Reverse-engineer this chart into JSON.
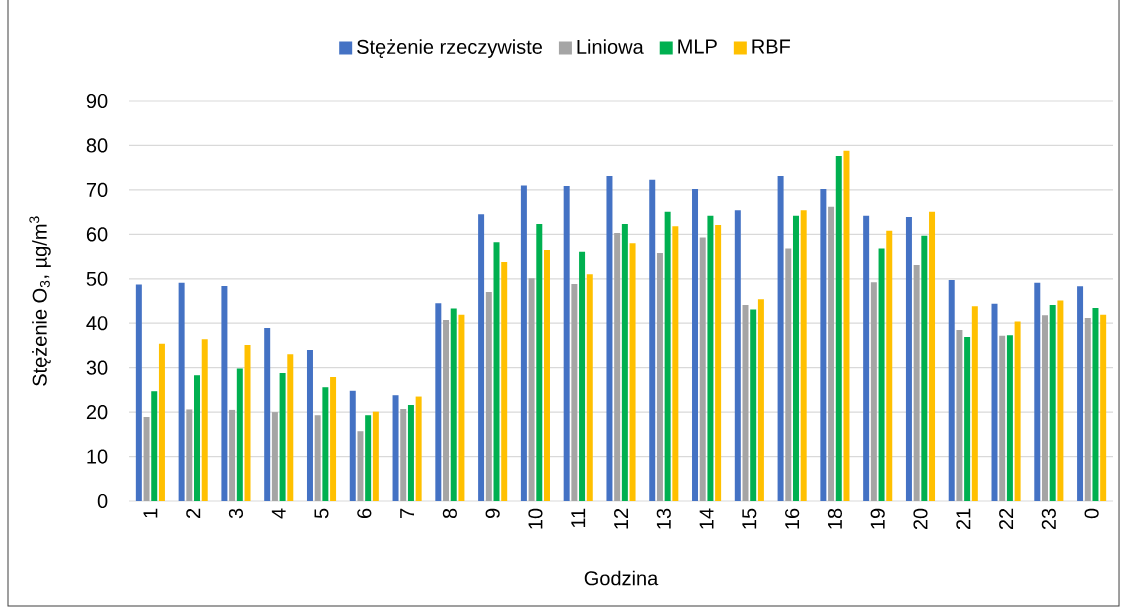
{
  "chart_data": {
    "type": "bar",
    "xlabel": "Godzina",
    "ylabel": "Stężenie O$_{3}$, µg/m$^{3}$",
    "categories": [
      "1",
      "2",
      "3",
      "4",
      "5",
      "6",
      "7",
      "8",
      "9",
      "10",
      "11",
      "12",
      "13",
      "14",
      "15",
      "16",
      "18",
      "19",
      "20",
      "21",
      "22",
      "23",
      "0"
    ],
    "series": [
      {
        "name": "Stężenie rzeczywiste",
        "color": "#4472c4",
        "values": [
          48.7,
          49.1,
          48.4,
          38.9,
          34.0,
          24.8,
          23.8,
          44.5,
          64.5,
          71.0,
          70.9,
          73.1,
          72.3,
          70.2,
          65.4,
          73.1,
          70.2,
          64.2,
          63.9,
          49.7,
          44.4,
          49.1,
          48.3
        ]
      },
      {
        "name": "Liniowa",
        "color": "#a5a5a5",
        "values": [
          18.9,
          20.6,
          20.5,
          20.0,
          19.3,
          15.7,
          20.7,
          40.7,
          47.0,
          50.1,
          48.8,
          60.3,
          55.8,
          59.3,
          44.1,
          56.8,
          66.2,
          49.2,
          53.1,
          38.5,
          37.2,
          41.8,
          41.2
        ]
      },
      {
        "name": "MLP",
        "color": "#00b050",
        "values": [
          24.7,
          28.3,
          29.8,
          28.8,
          25.6,
          19.3,
          21.6,
          43.3,
          58.2,
          62.3,
          56.1,
          62.3,
          65.1,
          64.2,
          43.1,
          64.2,
          77.6,
          56.8,
          59.7,
          36.9,
          37.3,
          44.1,
          43.4
        ]
      },
      {
        "name": "RBF",
        "color": "#ffc000",
        "values": [
          35.4,
          36.4,
          35.1,
          33.0,
          27.9,
          20.1,
          23.5,
          41.9,
          53.8,
          56.5,
          51.0,
          58.0,
          61.8,
          62.1,
          45.4,
          65.4,
          78.8,
          60.8,
          65.1,
          43.8,
          40.4,
          45.1,
          41.9
        ]
      }
    ],
    "ylim": [
      0,
      90
    ],
    "yticks": [
      0,
      10,
      20,
      30,
      40,
      50,
      60,
      70,
      80,
      90
    ],
    "grid": "y",
    "legend": "top"
  }
}
